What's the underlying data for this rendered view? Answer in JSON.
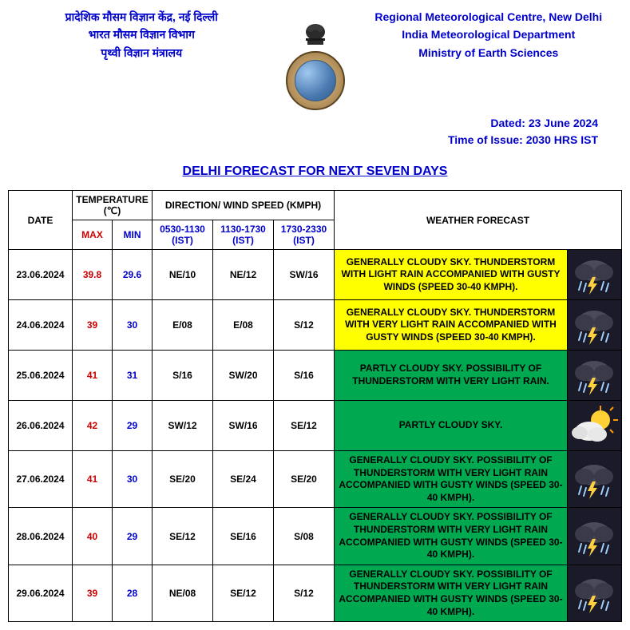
{
  "header": {
    "left_lines": [
      "प्रादेशिक मौसम विज्ञान केंद्र, नई दिल्ली",
      "भारत मौसम विज्ञान विभाग",
      "पृथ्वी विज्ञान मंत्रालय"
    ],
    "right_lines": [
      "Regional Meteorological Centre, New Delhi",
      "India Meteorological Department",
      "Ministry of Earth Sciences"
    ],
    "dated": "Dated: 23 June 2024",
    "time_of_issue": "Time of Issue: 2030 HRS IST"
  },
  "title": "DELHI FORECAST FOR NEXT SEVEN DAYS",
  "table_headers": {
    "date": "DATE",
    "temperature": "TEMPERATURE (℃)",
    "max": "MAX",
    "min": "MIN",
    "wind": "DIRECTION/ WIND SPEED (KMPH)",
    "slot1": "0530-1130 (IST)",
    "slot2": "1130-1730 (IST)",
    "slot3": "1730-2330 (IST)",
    "forecast": "WEATHER FORECAST"
  },
  "colors": {
    "yellow": "#ffff00",
    "green": "#00a84f",
    "header_text": "#0000cc",
    "max_text": "#cc0000",
    "min_text": "#0000cc",
    "icon_bg": "#1a1a28"
  },
  "rows": [
    {
      "date": "23.06.2024",
      "max": "39.8",
      "min": "29.6",
      "w1": "NE/10",
      "w2": "NE/12",
      "w3": "SW/16",
      "forecast": "GENERALLY CLOUDY SKY. THUNDERSTORM WITH LIGHT RAIN ACCOMPANIED WITH GUSTY WINDS (SPEED 30-40 KMPH).",
      "fc_color": "yellow",
      "icon": "thunder-rain"
    },
    {
      "date": "24.06.2024",
      "max": "39",
      "min": "30",
      "w1": "E/08",
      "w2": "E/08",
      "w3": "S/12",
      "forecast": "GENERALLY CLOUDY SKY. THUNDERSTORM WITH VERY LIGHT RAIN ACCOMPANIED WITH GUSTY WINDS (SPEED 30-40 KMPH).",
      "fc_color": "yellow",
      "icon": "thunder-rain"
    },
    {
      "date": "25.06.2024",
      "max": "41",
      "min": "31",
      "w1": "S/16",
      "w2": "SW/20",
      "w3": "S/16",
      "forecast": "PARTLY CLOUDY SKY. POSSIBILITY OF THUNDERSTORM WITH VERY LIGHT RAIN.",
      "fc_color": "green",
      "icon": "thunder-rain"
    },
    {
      "date": "26.06.2024",
      "max": "42",
      "min": "29",
      "w1": "SW/12",
      "w2": "SW/16",
      "w3": "SE/12",
      "forecast": "PARTLY CLOUDY SKY.",
      "fc_color": "green",
      "icon": "partly-cloudy"
    },
    {
      "date": "27.06.2024",
      "max": "41",
      "min": "30",
      "w1": "SE/20",
      "w2": "SE/24",
      "w3": "SE/20",
      "forecast": "GENERALLY CLOUDY SKY. POSSIBILITY OF THUNDERSTORM WITH VERY LIGHT RAIN ACCOMPANIED WITH GUSTY WINDS (SPEED 30-40 KMPH).",
      "fc_color": "green",
      "icon": "thunder-rain"
    },
    {
      "date": "28.06.2024",
      "max": "40",
      "min": "29",
      "w1": "SE/12",
      "w2": "SE/16",
      "w3": "S/08",
      "forecast": "GENERALLY CLOUDY SKY. POSSIBILITY OF THUNDERSTORM WITH VERY LIGHT RAIN ACCOMPANIED WITH GUSTY WINDS (SPEED 30-40 KMPH).",
      "fc_color": "green",
      "icon": "thunder-rain"
    },
    {
      "date": "29.06.2024",
      "max": "39",
      "min": "28",
      "w1": "NE/08",
      "w2": "SE/12",
      "w3": "S/12",
      "forecast": "GENERALLY CLOUDY SKY. POSSIBILITY OF THUNDERSTORM WITH VERY LIGHT RAIN ACCOMPANIED WITH GUSTY WINDS (SPEED 30-40 KMPH).",
      "fc_color": "green",
      "icon": "thunder-rain"
    }
  ]
}
